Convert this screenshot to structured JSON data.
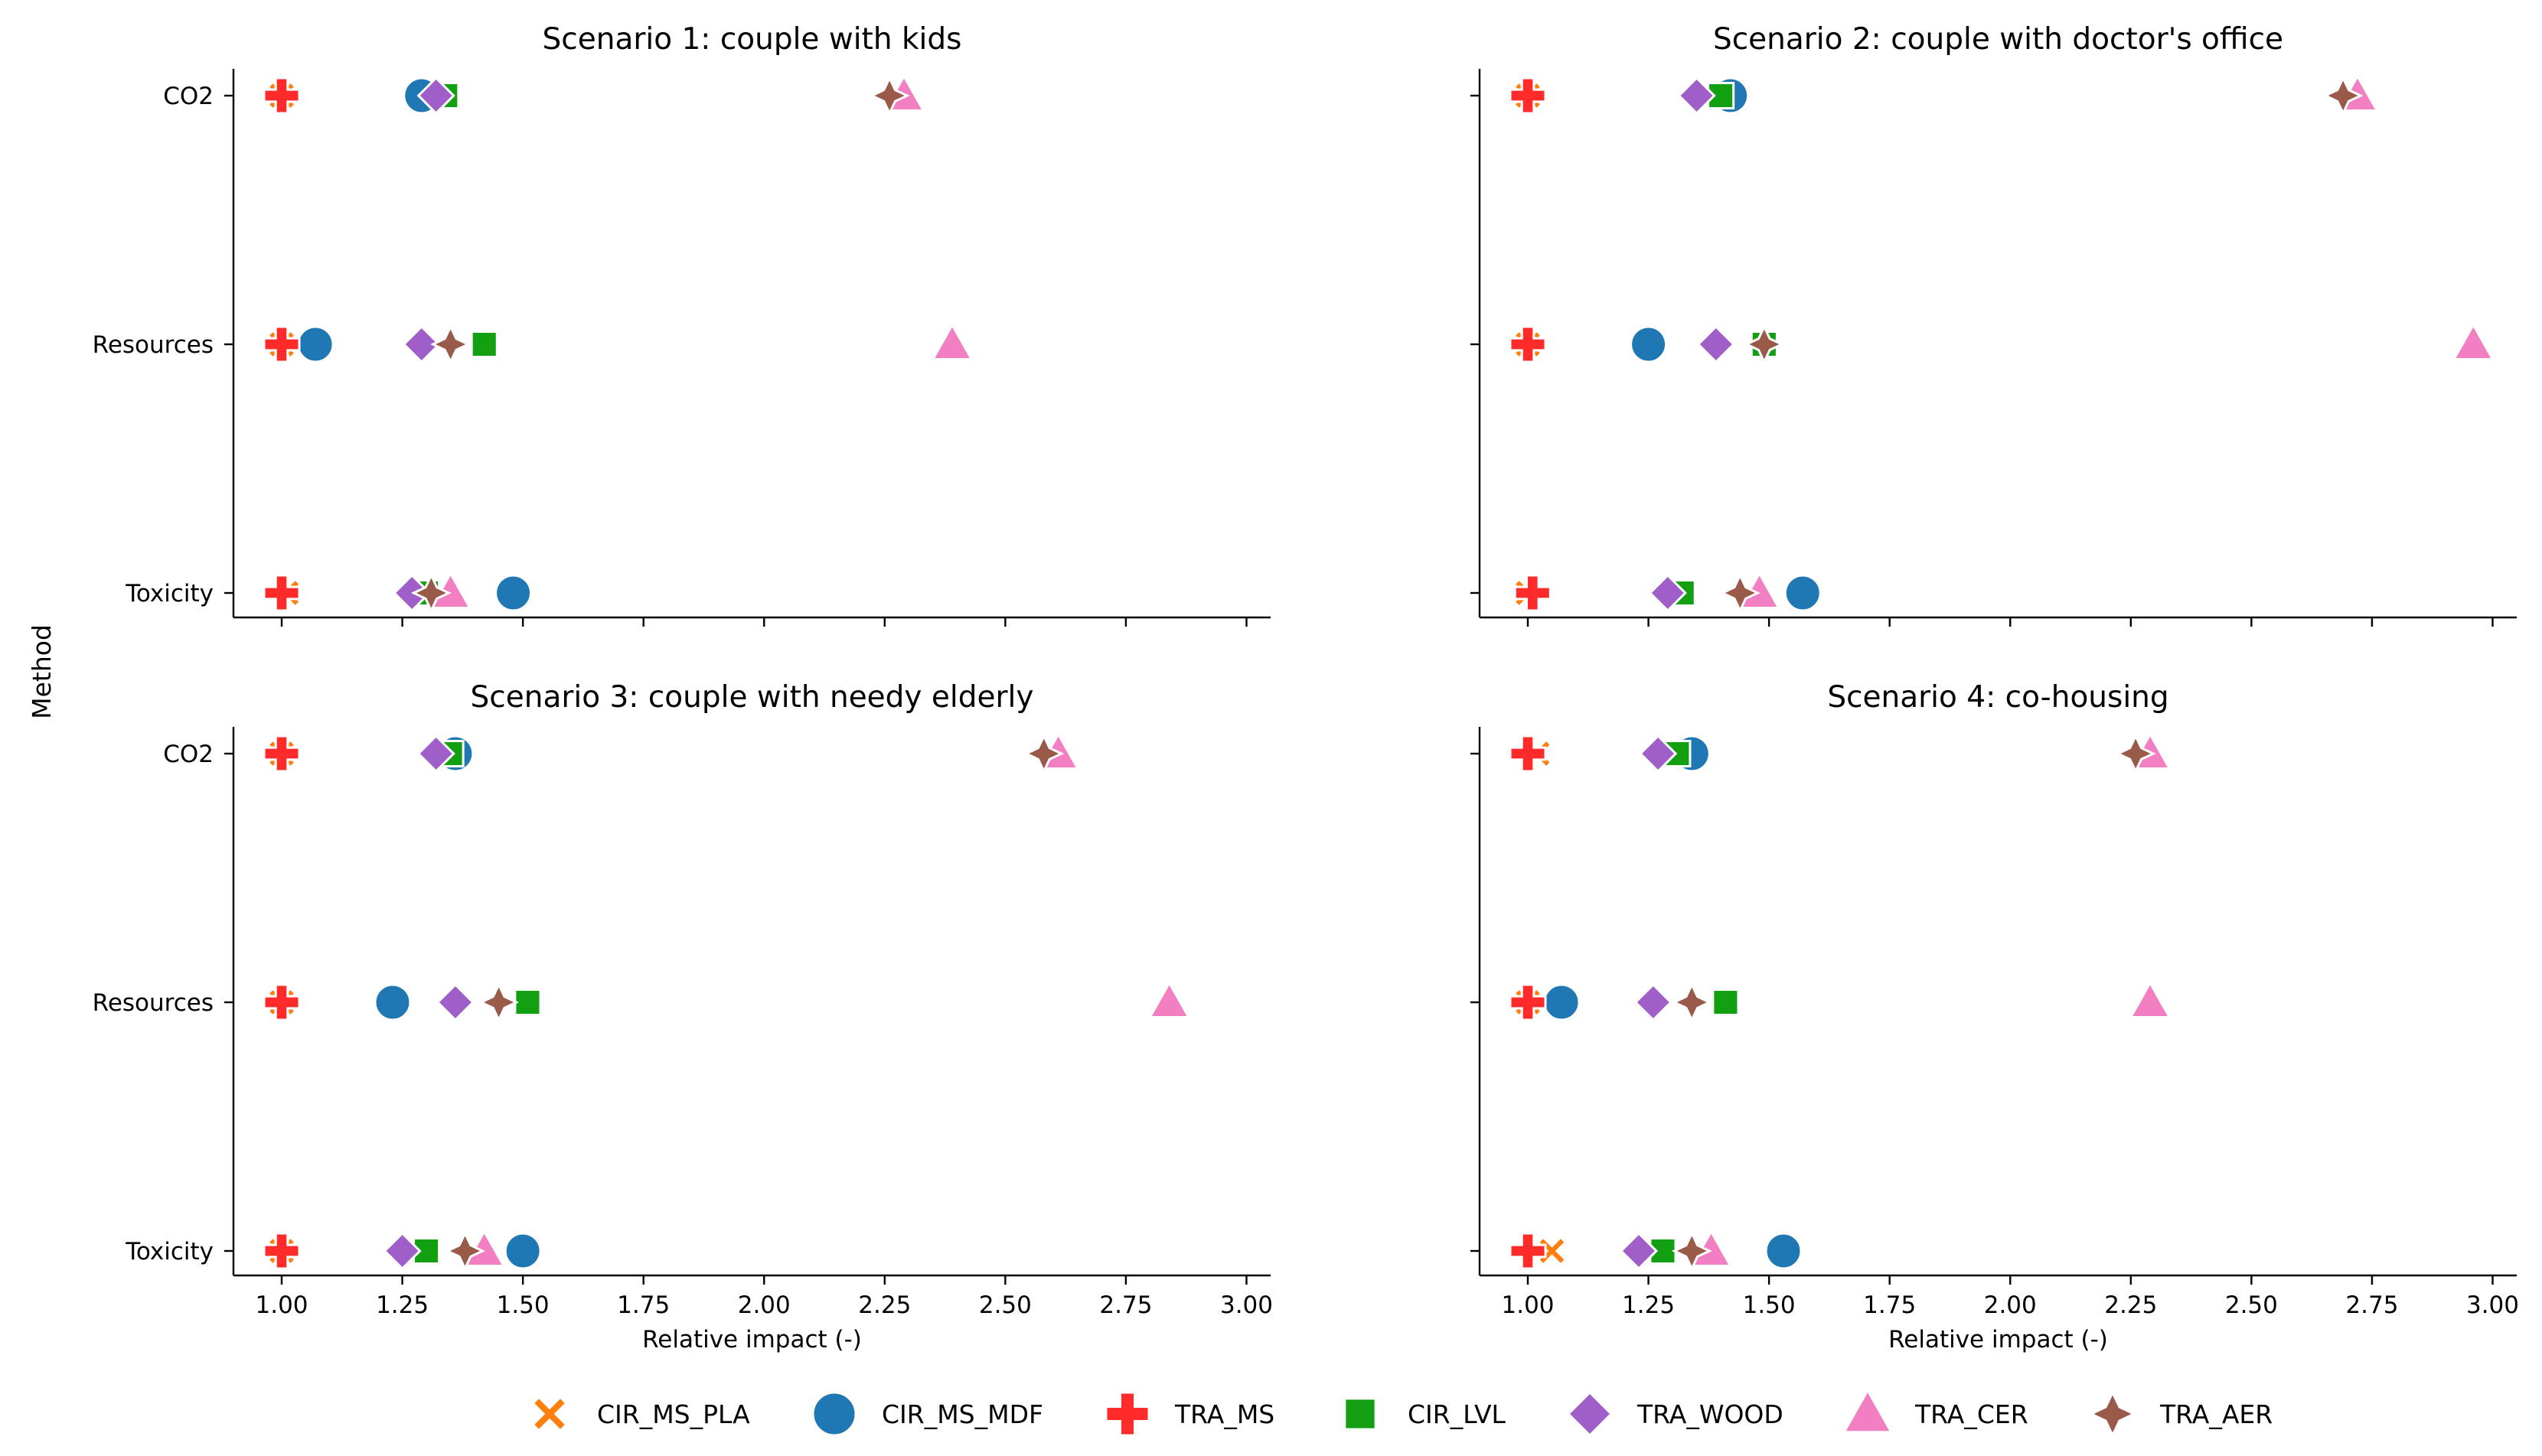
{
  "chart_data": {
    "type": "scatter",
    "shared_ylabel": "Method",
    "categories": [
      "CO2",
      "Resources",
      "Toxicity"
    ],
    "xlabel": "Relative impact (-)",
    "xlim": [
      0.9,
      3.05
    ],
    "xticks": [
      "1.00",
      "1.25",
      "1.50",
      "1.75",
      "2.00",
      "2.25",
      "2.50",
      "2.75",
      "3.00"
    ],
    "legend_position": "bottom-center",
    "series_styles": [
      {
        "name": "CIR_MS_PLA",
        "marker": "x",
        "color": "#ff7f0e"
      },
      {
        "name": "CIR_MS_MDF",
        "marker": "circle",
        "color": "#1f77b4"
      },
      {
        "name": "TRA_MS",
        "marker": "plus",
        "color": "#ff2a2a"
      },
      {
        "name": "CIR_LVL",
        "marker": "square",
        "color": "#12a012"
      },
      {
        "name": "TRA_WOOD",
        "marker": "diamond",
        "color": "#a05fc8"
      },
      {
        "name": "TRA_CER",
        "marker": "triangle",
        "color": "#f37fc3"
      },
      {
        "name": "TRA_AER",
        "marker": "star4",
        "color": "#9a5a4a"
      }
    ],
    "panels": [
      {
        "title": "Scenario 1: couple with kids",
        "series": [
          {
            "name": "CIR_MS_PLA",
            "values": [
              1.0,
              1.0,
              1.01
            ]
          },
          {
            "name": "CIR_MS_MDF",
            "values": [
              1.29,
              1.07,
              1.48
            ]
          },
          {
            "name": "TRA_MS",
            "values": [
              1.0,
              1.0,
              1.0
            ]
          },
          {
            "name": "CIR_LVL",
            "values": [
              1.34,
              1.42,
              1.3
            ]
          },
          {
            "name": "TRA_WOOD",
            "values": [
              1.32,
              1.29,
              1.27
            ]
          },
          {
            "name": "TRA_CER",
            "values": [
              2.29,
              2.39,
              1.35
            ]
          },
          {
            "name": "TRA_AER",
            "values": [
              2.26,
              1.35,
              1.31
            ]
          }
        ]
      },
      {
        "title": "Scenario 2: couple with doctor's office",
        "series": [
          {
            "name": "CIR_MS_PLA",
            "values": [
              1.0,
              1.0,
              1.0
            ]
          },
          {
            "name": "CIR_MS_MDF",
            "values": [
              1.42,
              1.25,
              1.57
            ]
          },
          {
            "name": "TRA_MS",
            "values": [
              1.0,
              1.0,
              1.01
            ]
          },
          {
            "name": "CIR_LVL",
            "values": [
              1.4,
              1.49,
              1.32
            ]
          },
          {
            "name": "TRA_WOOD",
            "values": [
              1.35,
              1.39,
              1.29
            ]
          },
          {
            "name": "TRA_CER",
            "values": [
              2.72,
              2.96,
              1.48
            ]
          },
          {
            "name": "TRA_AER",
            "values": [
              2.69,
              1.49,
              1.44
            ]
          }
        ]
      },
      {
        "title": "Scenario 3: couple with needy elderly",
        "series": [
          {
            "name": "CIR_MS_PLA",
            "values": [
              1.0,
              1.0,
              1.0
            ]
          },
          {
            "name": "CIR_MS_MDF",
            "values": [
              1.36,
              1.23,
              1.5
            ]
          },
          {
            "name": "TRA_MS",
            "values": [
              1.0,
              1.0,
              1.0
            ]
          },
          {
            "name": "CIR_LVL",
            "values": [
              1.35,
              1.51,
              1.3
            ]
          },
          {
            "name": "TRA_WOOD",
            "values": [
              1.32,
              1.36,
              1.25
            ]
          },
          {
            "name": "TRA_CER",
            "values": [
              2.61,
              2.84,
              1.42
            ]
          },
          {
            "name": "TRA_AER",
            "values": [
              2.58,
              1.45,
              1.38
            ]
          }
        ]
      },
      {
        "title": "Scenario 4: co-housing",
        "series": [
          {
            "name": "CIR_MS_PLA",
            "values": [
              1.02,
              1.0,
              1.05
            ]
          },
          {
            "name": "CIR_MS_MDF",
            "values": [
              1.34,
              1.07,
              1.53
            ]
          },
          {
            "name": "TRA_MS",
            "values": [
              1.0,
              1.0,
              1.0
            ]
          },
          {
            "name": "CIR_LVL",
            "values": [
              1.31,
              1.41,
              1.28
            ]
          },
          {
            "name": "TRA_WOOD",
            "values": [
              1.27,
              1.26,
              1.23
            ]
          },
          {
            "name": "TRA_CER",
            "values": [
              2.29,
              2.29,
              1.38
            ]
          },
          {
            "name": "TRA_AER",
            "values": [
              2.26,
              1.34,
              1.34
            ]
          }
        ]
      }
    ]
  }
}
